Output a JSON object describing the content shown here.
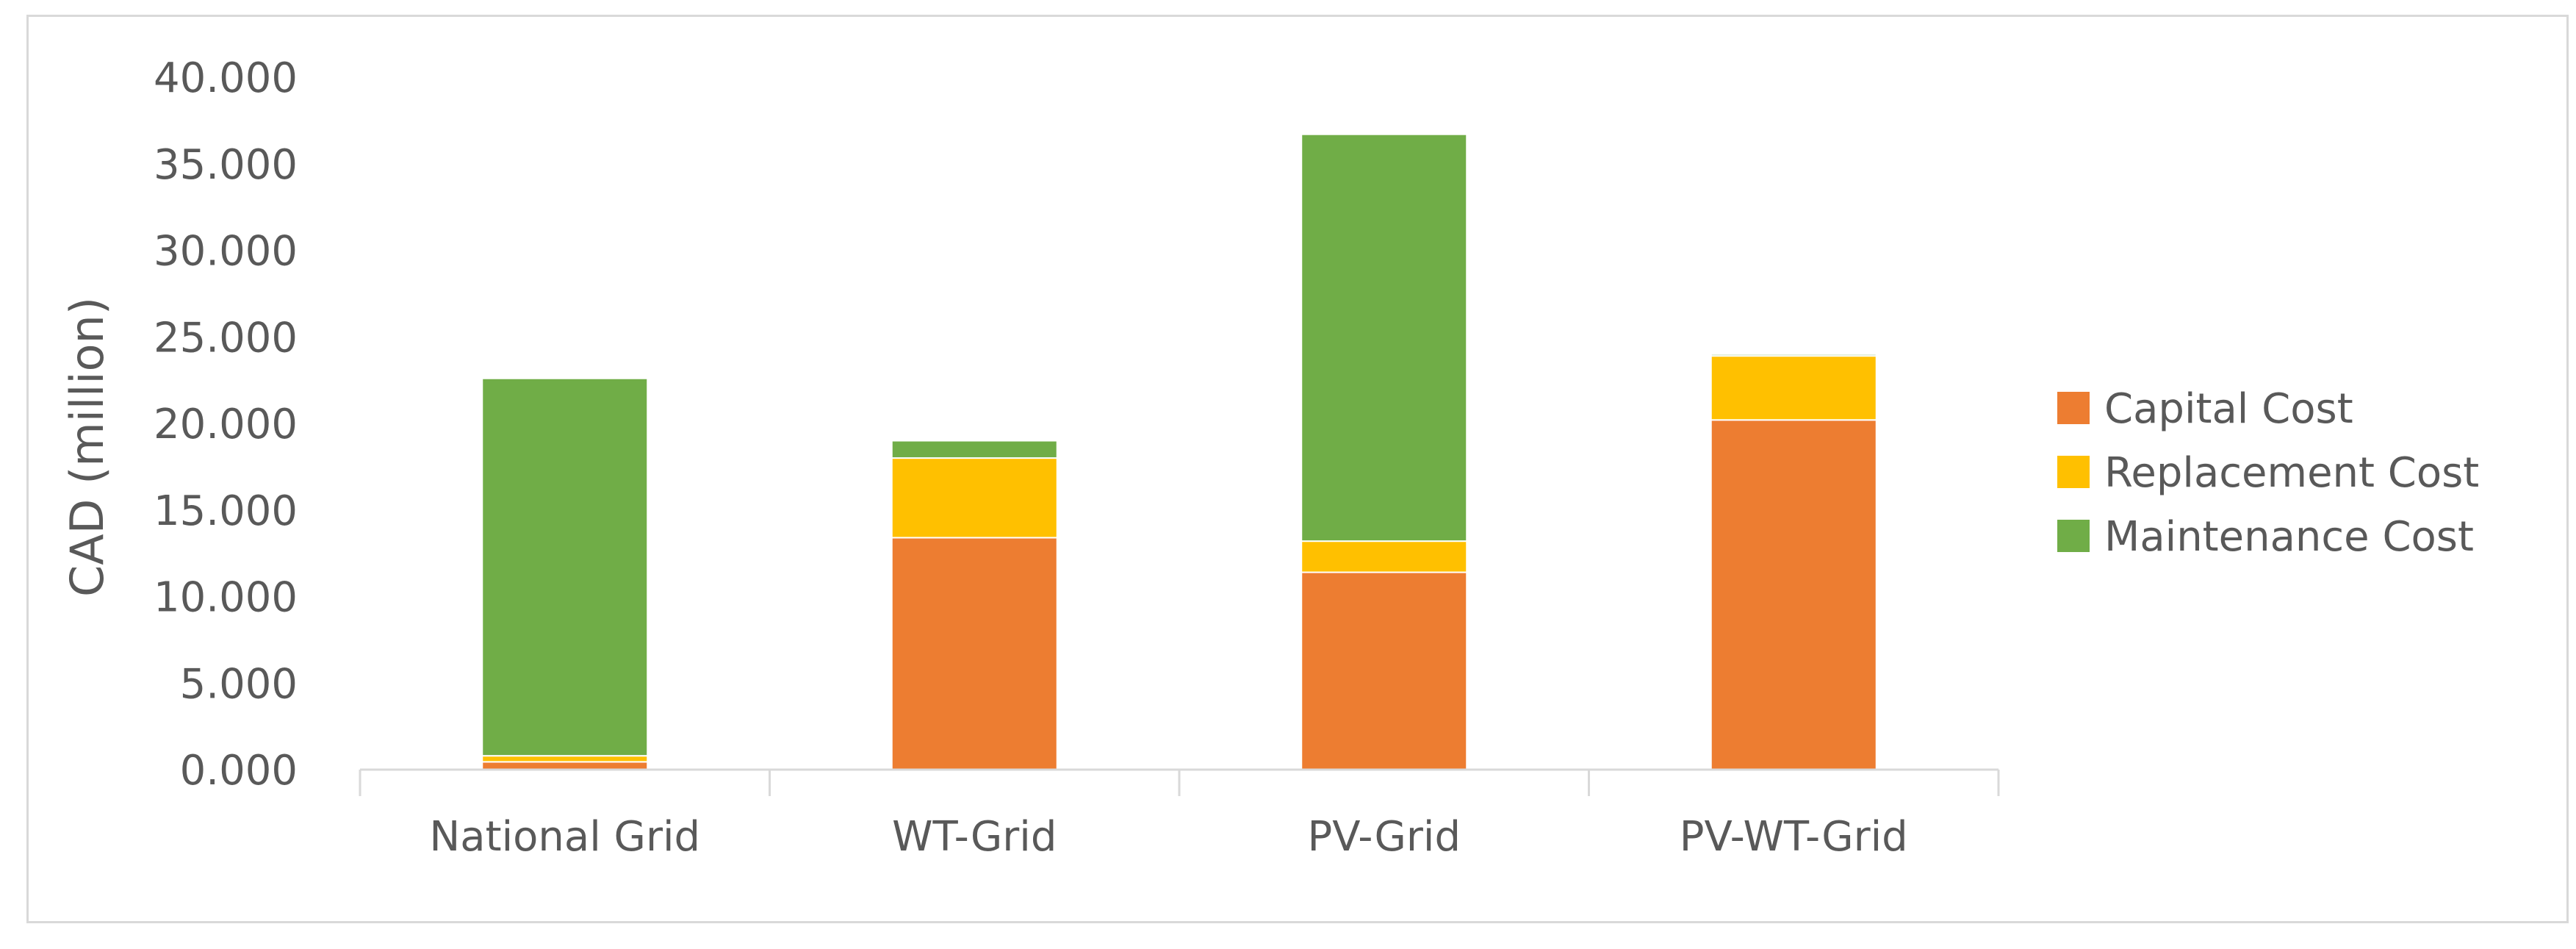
{
  "chart_data": {
    "type": "bar",
    "stacked": true,
    "categories": [
      "National Grid",
      "WT-Grid",
      "PV-Grid",
      "PV-WT-Grid"
    ],
    "series": [
      {
        "name": "Capital Cost",
        "values": [
          0.45,
          13.4,
          11.4,
          20.2
        ],
        "color": "#ED7D31"
      },
      {
        "name": "Replacement Cost",
        "values": [
          0.35,
          4.6,
          1.8,
          3.7
        ],
        "color": "#FFC000"
      },
      {
        "name": "Maintenance Cost",
        "values": [
          21.8,
          1.0,
          23.5,
          0.1
        ],
        "color": "#70AD47"
      }
    ],
    "ylabel": "CAD (million)",
    "xlabel": "",
    "title": "",
    "ylim": [
      0,
      40
    ],
    "yticks": [
      "0.000",
      "5.000",
      "10.000",
      "15.000",
      "20.000",
      "25.000",
      "30.000",
      "35.000",
      "40.000"
    ],
    "grid": false,
    "legend_position": "right"
  }
}
